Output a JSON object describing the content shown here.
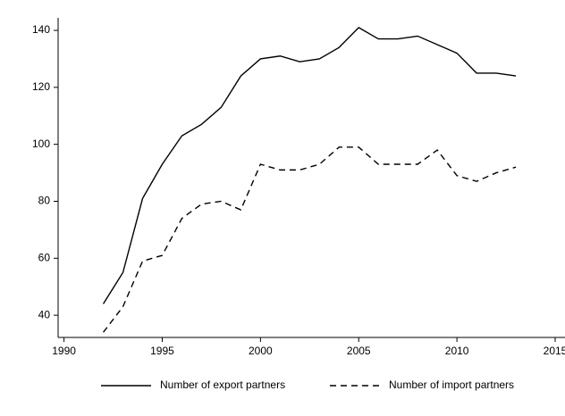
{
  "chart_data": {
    "type": "line",
    "x": [
      1992,
      1993,
      1994,
      1995,
      1996,
      1997,
      1998,
      1999,
      2000,
      2001,
      2002,
      2003,
      2004,
      2005,
      2006,
      2007,
      2008,
      2009,
      2010,
      2011,
      2012,
      2013
    ],
    "series": [
      {
        "name": "Number of export partners",
        "color": "#000000",
        "line_style": "solid",
        "values": [
          44,
          55,
          81,
          93,
          103,
          107,
          113,
          124,
          130,
          131,
          129,
          130,
          134,
          141,
          137,
          137,
          138,
          135,
          132,
          125,
          125,
          124
        ]
      },
      {
        "name": "Number of import partners",
        "color": "#000000",
        "line_style": "dashed",
        "values": [
          34,
          43,
          59,
          61,
          74,
          79,
          80,
          77,
          93,
          91,
          91,
          93,
          99,
          99,
          93,
          93,
          93,
          98,
          89,
          87,
          90,
          92
        ]
      }
    ],
    "xlim": [
      1989.7,
      2015.5
    ],
    "xticks": [
      1990,
      1995,
      2000,
      2005,
      2010,
      2015
    ],
    "ylim": [
      32.2,
      144.4
    ],
    "yticks": [
      40,
      60,
      80,
      100,
      120,
      140
    ],
    "grid": false,
    "legend": "bottom"
  }
}
